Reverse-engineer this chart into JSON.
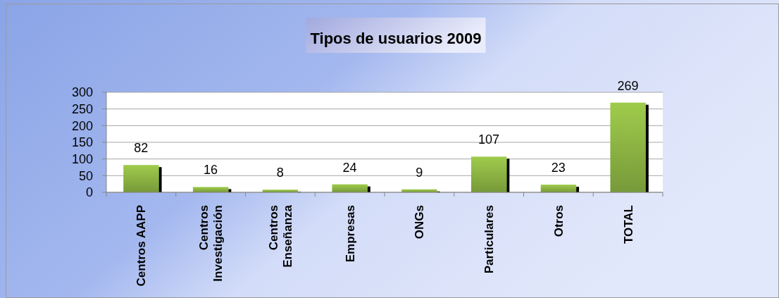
{
  "chart_data": {
    "type": "bar",
    "title": "Tipos de usuarios 2009",
    "categories": [
      "Centros AAPP",
      "Centros Investigación",
      "Centros Enseñanza",
      "Empresas",
      "ONGs",
      "Particulares",
      "Otros",
      "TOTAL"
    ],
    "values": [
      82,
      16,
      8,
      24,
      9,
      107,
      23,
      269
    ],
    "color": "#8cb443",
    "ylim": [
      0,
      300
    ],
    "yticks": [
      0,
      50,
      100,
      150,
      200,
      250,
      300
    ],
    "grid": "y",
    "data_labels": true
  }
}
